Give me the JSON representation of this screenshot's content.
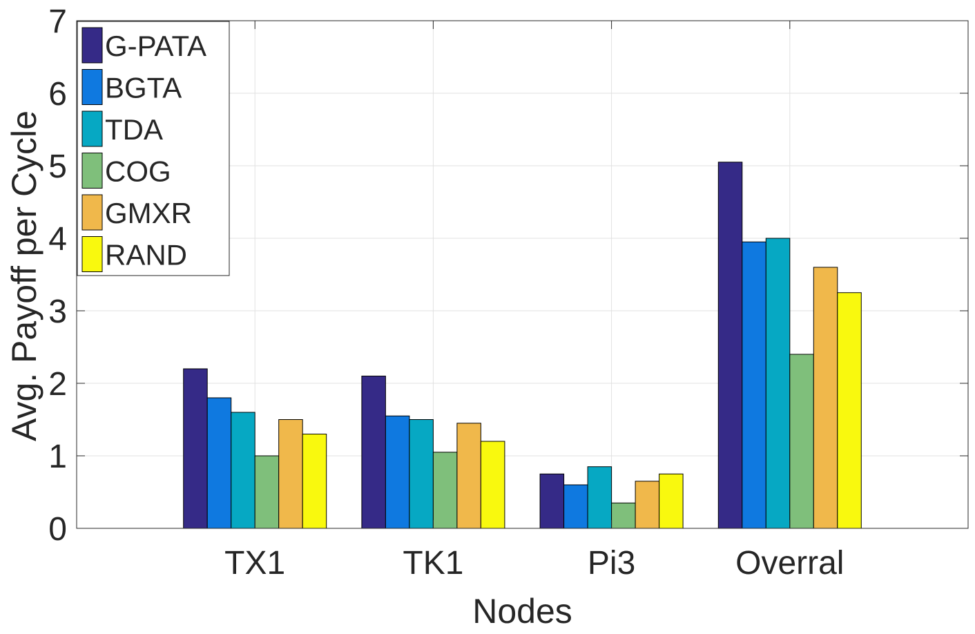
{
  "chart_data": {
    "type": "bar",
    "title": "",
    "xlabel": "Nodes",
    "ylabel": "Avg. Payoff per Cycle",
    "categories": [
      "TX1",
      "TK1",
      "Pi3",
      "Overral"
    ],
    "ylim": [
      0,
      7
    ],
    "yticks": [
      0,
      1,
      2,
      3,
      4,
      5,
      6,
      7
    ],
    "grid": true,
    "legend_position": "top-left",
    "series": [
      {
        "name": "G-PATA",
        "color": "#352a87",
        "values": [
          2.2,
          2.1,
          0.75,
          5.05
        ]
      },
      {
        "name": "BGTA",
        "color": "#0f79e0",
        "values": [
          1.8,
          1.55,
          0.6,
          3.95
        ]
      },
      {
        "name": "TDA",
        "color": "#06a8c3",
        "values": [
          1.6,
          1.5,
          0.85,
          4.0
        ]
      },
      {
        "name": "COG",
        "color": "#7fbf7b",
        "values": [
          1.0,
          1.05,
          0.35,
          2.4
        ]
      },
      {
        "name": "GMXR",
        "color": "#f0b84b",
        "values": [
          1.5,
          1.45,
          0.65,
          3.6
        ]
      },
      {
        "name": "RAND",
        "color": "#f9f90e",
        "values": [
          1.3,
          1.2,
          0.75,
          3.25
        ]
      }
    ]
  }
}
